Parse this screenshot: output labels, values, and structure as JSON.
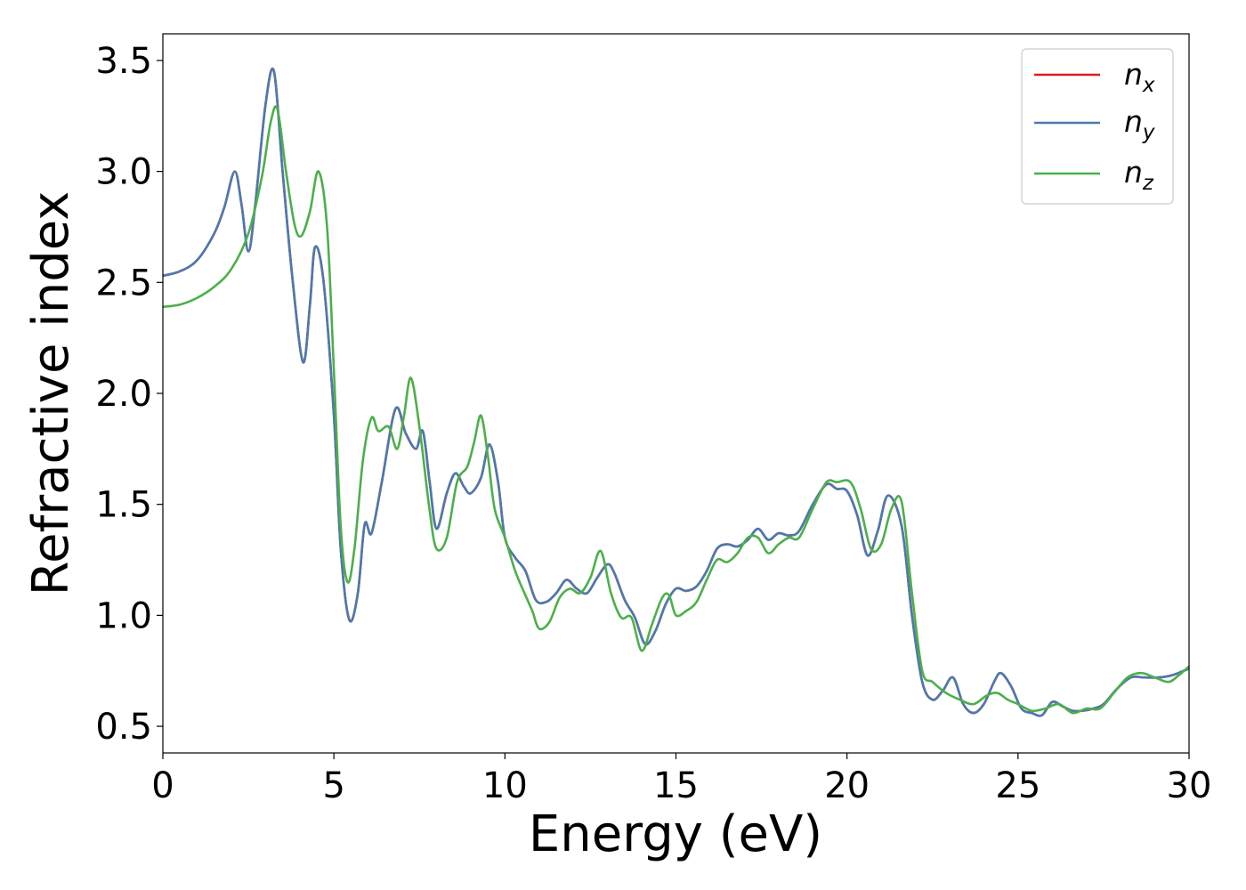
{
  "chart_data": {
    "type": "line",
    "xlabel": "Energy (eV)",
    "ylabel": "Refractive index",
    "xlim": [
      0,
      30
    ],
    "ylim": [
      0.38,
      3.62
    ],
    "xticks": [
      0,
      5,
      10,
      15,
      20,
      25,
      30
    ],
    "xtick_labels": [
      "0",
      "5",
      "10",
      "15",
      "20",
      "25",
      "30"
    ],
    "yticks": [
      0.5,
      1.0,
      1.5,
      2.0,
      2.5,
      3.0,
      3.5
    ],
    "ytick_labels": [
      "0.5",
      "1.0",
      "1.5",
      "2.0",
      "2.5",
      "3.0",
      "3.5"
    ],
    "grid": false,
    "legend_position": "top-right",
    "series": [
      {
        "name": "n_x",
        "label_main": "n",
        "label_sub": "x",
        "color": "#e41a1c",
        "x": [
          0,
          0.5,
          1.0,
          1.5,
          1.8,
          2.1,
          2.3,
          2.5,
          2.7,
          3.0,
          3.25,
          3.5,
          3.8,
          4.1,
          4.3,
          4.45,
          4.7,
          5.0,
          5.2,
          5.45,
          5.7,
          5.9,
          6.1,
          6.4,
          6.8,
          7.1,
          7.4,
          7.6,
          7.8,
          8.0,
          8.3,
          8.55,
          8.8,
          9.0,
          9.3,
          9.55,
          9.8,
          10.0,
          10.3,
          10.6,
          10.9,
          11.2,
          11.5,
          11.8,
          12.1,
          12.4,
          12.7,
          13.0,
          13.2,
          13.5,
          13.8,
          14.1,
          14.4,
          14.7,
          15.0,
          15.3,
          15.6,
          15.9,
          16.2,
          16.5,
          16.8,
          17.1,
          17.4,
          17.7,
          18.0,
          18.3,
          18.6,
          19.0,
          19.4,
          19.7,
          20.0,
          20.3,
          20.6,
          20.9,
          21.2,
          21.6,
          21.9,
          22.2,
          22.5,
          22.8,
          23.1,
          23.4,
          23.7,
          24.0,
          24.3,
          24.5,
          24.8,
          25.1,
          25.4,
          25.7,
          26.0,
          26.3,
          26.6,
          26.9,
          27.2,
          27.5,
          27.9,
          28.3,
          28.7,
          29.1,
          29.5,
          30.0
        ],
        "y": [
          2.53,
          2.55,
          2.6,
          2.72,
          2.84,
          3.0,
          2.85,
          2.64,
          2.85,
          3.3,
          3.45,
          3.0,
          2.5,
          2.14,
          2.4,
          2.66,
          2.5,
          1.9,
          1.3,
          0.98,
          1.1,
          1.41,
          1.37,
          1.6,
          1.93,
          1.82,
          1.75,
          1.83,
          1.6,
          1.39,
          1.55,
          1.64,
          1.58,
          1.55,
          1.62,
          1.77,
          1.6,
          1.35,
          1.26,
          1.2,
          1.07,
          1.06,
          1.1,
          1.16,
          1.12,
          1.1,
          1.17,
          1.23,
          1.19,
          1.07,
          0.99,
          0.87,
          0.93,
          1.05,
          1.12,
          1.11,
          1.13,
          1.2,
          1.3,
          1.32,
          1.31,
          1.34,
          1.39,
          1.34,
          1.37,
          1.36,
          1.38,
          1.5,
          1.59,
          1.57,
          1.56,
          1.45,
          1.27,
          1.38,
          1.54,
          1.4,
          1.0,
          0.7,
          0.62,
          0.66,
          0.72,
          0.6,
          0.56,
          0.6,
          0.7,
          0.74,
          0.68,
          0.58,
          0.56,
          0.55,
          0.61,
          0.59,
          0.57,
          0.57,
          0.58,
          0.6,
          0.67,
          0.72,
          0.72,
          0.72,
          0.73,
          0.76
        ]
      },
      {
        "name": "n_y",
        "label_main": "n",
        "label_sub": "y",
        "color": "#4a7ab0",
        "x": [
          0,
          0.5,
          1.0,
          1.5,
          1.8,
          2.1,
          2.3,
          2.5,
          2.7,
          3.0,
          3.25,
          3.5,
          3.8,
          4.1,
          4.3,
          4.45,
          4.7,
          5.0,
          5.2,
          5.45,
          5.7,
          5.9,
          6.1,
          6.4,
          6.8,
          7.1,
          7.4,
          7.6,
          7.8,
          8.0,
          8.3,
          8.55,
          8.8,
          9.0,
          9.3,
          9.55,
          9.8,
          10.0,
          10.3,
          10.6,
          10.9,
          11.2,
          11.5,
          11.8,
          12.1,
          12.4,
          12.7,
          13.0,
          13.2,
          13.5,
          13.8,
          14.1,
          14.4,
          14.7,
          15.0,
          15.3,
          15.6,
          15.9,
          16.2,
          16.5,
          16.8,
          17.1,
          17.4,
          17.7,
          18.0,
          18.3,
          18.6,
          19.0,
          19.4,
          19.7,
          20.0,
          20.3,
          20.6,
          20.9,
          21.2,
          21.6,
          21.9,
          22.2,
          22.5,
          22.8,
          23.1,
          23.4,
          23.7,
          24.0,
          24.3,
          24.5,
          24.8,
          25.1,
          25.4,
          25.7,
          26.0,
          26.3,
          26.6,
          26.9,
          27.2,
          27.5,
          27.9,
          28.3,
          28.7,
          29.1,
          29.5,
          30.0
        ],
        "y": [
          2.53,
          2.55,
          2.6,
          2.72,
          2.84,
          3.0,
          2.85,
          2.64,
          2.85,
          3.3,
          3.45,
          3.0,
          2.5,
          2.14,
          2.4,
          2.66,
          2.5,
          1.9,
          1.3,
          0.98,
          1.1,
          1.41,
          1.37,
          1.6,
          1.93,
          1.82,
          1.75,
          1.83,
          1.6,
          1.39,
          1.55,
          1.64,
          1.58,
          1.55,
          1.62,
          1.77,
          1.6,
          1.35,
          1.26,
          1.2,
          1.07,
          1.06,
          1.1,
          1.16,
          1.12,
          1.1,
          1.17,
          1.23,
          1.19,
          1.07,
          0.99,
          0.87,
          0.93,
          1.05,
          1.12,
          1.11,
          1.13,
          1.2,
          1.3,
          1.32,
          1.31,
          1.34,
          1.39,
          1.34,
          1.37,
          1.36,
          1.38,
          1.5,
          1.59,
          1.57,
          1.56,
          1.45,
          1.27,
          1.38,
          1.54,
          1.4,
          1.0,
          0.7,
          0.62,
          0.66,
          0.72,
          0.6,
          0.56,
          0.6,
          0.7,
          0.74,
          0.68,
          0.58,
          0.56,
          0.55,
          0.61,
          0.59,
          0.57,
          0.57,
          0.58,
          0.6,
          0.67,
          0.72,
          0.72,
          0.72,
          0.73,
          0.76
        ]
      },
      {
        "name": "n_z",
        "label_main": "n",
        "label_sub": "z",
        "color": "#4daf4a",
        "x": [
          0,
          0.5,
          1.0,
          1.5,
          2.0,
          2.5,
          2.9,
          3.15,
          3.35,
          3.6,
          3.85,
          4.05,
          4.3,
          4.55,
          4.8,
          5.0,
          5.2,
          5.4,
          5.6,
          5.85,
          6.1,
          6.3,
          6.6,
          6.85,
          7.05,
          7.25,
          7.5,
          7.8,
          8.0,
          8.3,
          8.6,
          8.9,
          9.1,
          9.3,
          9.5,
          9.7,
          10.0,
          10.3,
          10.6,
          10.8,
          11.0,
          11.3,
          11.6,
          11.9,
          12.2,
          12.5,
          12.8,
          13.1,
          13.4,
          13.7,
          14.0,
          14.3,
          14.6,
          14.8,
          15.0,
          15.3,
          15.6,
          15.9,
          16.2,
          16.5,
          16.8,
          17.1,
          17.4,
          17.7,
          18.0,
          18.3,
          18.6,
          19.0,
          19.4,
          19.7,
          20.1,
          20.4,
          20.7,
          21.0,
          21.3,
          21.6,
          21.9,
          22.2,
          22.5,
          22.9,
          23.3,
          23.7,
          24.1,
          24.4,
          24.7,
          25.0,
          25.4,
          25.8,
          26.2,
          26.6,
          27.0,
          27.4,
          27.8,
          28.2,
          28.6,
          29.0,
          29.4,
          29.7,
          30.0
        ],
        "y": [
          2.39,
          2.4,
          2.43,
          2.48,
          2.56,
          2.72,
          2.98,
          3.22,
          3.28,
          3.0,
          2.76,
          2.71,
          2.82,
          3.0,
          2.75,
          2.1,
          1.4,
          1.15,
          1.3,
          1.7,
          1.89,
          1.83,
          1.85,
          1.75,
          1.9,
          2.07,
          1.85,
          1.47,
          1.3,
          1.35,
          1.6,
          1.67,
          1.78,
          1.9,
          1.72,
          1.48,
          1.35,
          1.2,
          1.09,
          1.02,
          0.94,
          0.97,
          1.08,
          1.12,
          1.1,
          1.17,
          1.29,
          1.1,
          0.99,
          0.99,
          0.84,
          0.96,
          1.08,
          1.09,
          1.0,
          1.02,
          1.06,
          1.16,
          1.25,
          1.24,
          1.28,
          1.35,
          1.35,
          1.28,
          1.32,
          1.35,
          1.35,
          1.48,
          1.6,
          1.6,
          1.6,
          1.48,
          1.3,
          1.32,
          1.48,
          1.51,
          1.1,
          0.75,
          0.7,
          0.65,
          0.62,
          0.6,
          0.64,
          0.65,
          0.62,
          0.6,
          0.57,
          0.58,
          0.6,
          0.56,
          0.58,
          0.58,
          0.65,
          0.72,
          0.74,
          0.72,
          0.7,
          0.73,
          0.77
        ]
      }
    ]
  }
}
